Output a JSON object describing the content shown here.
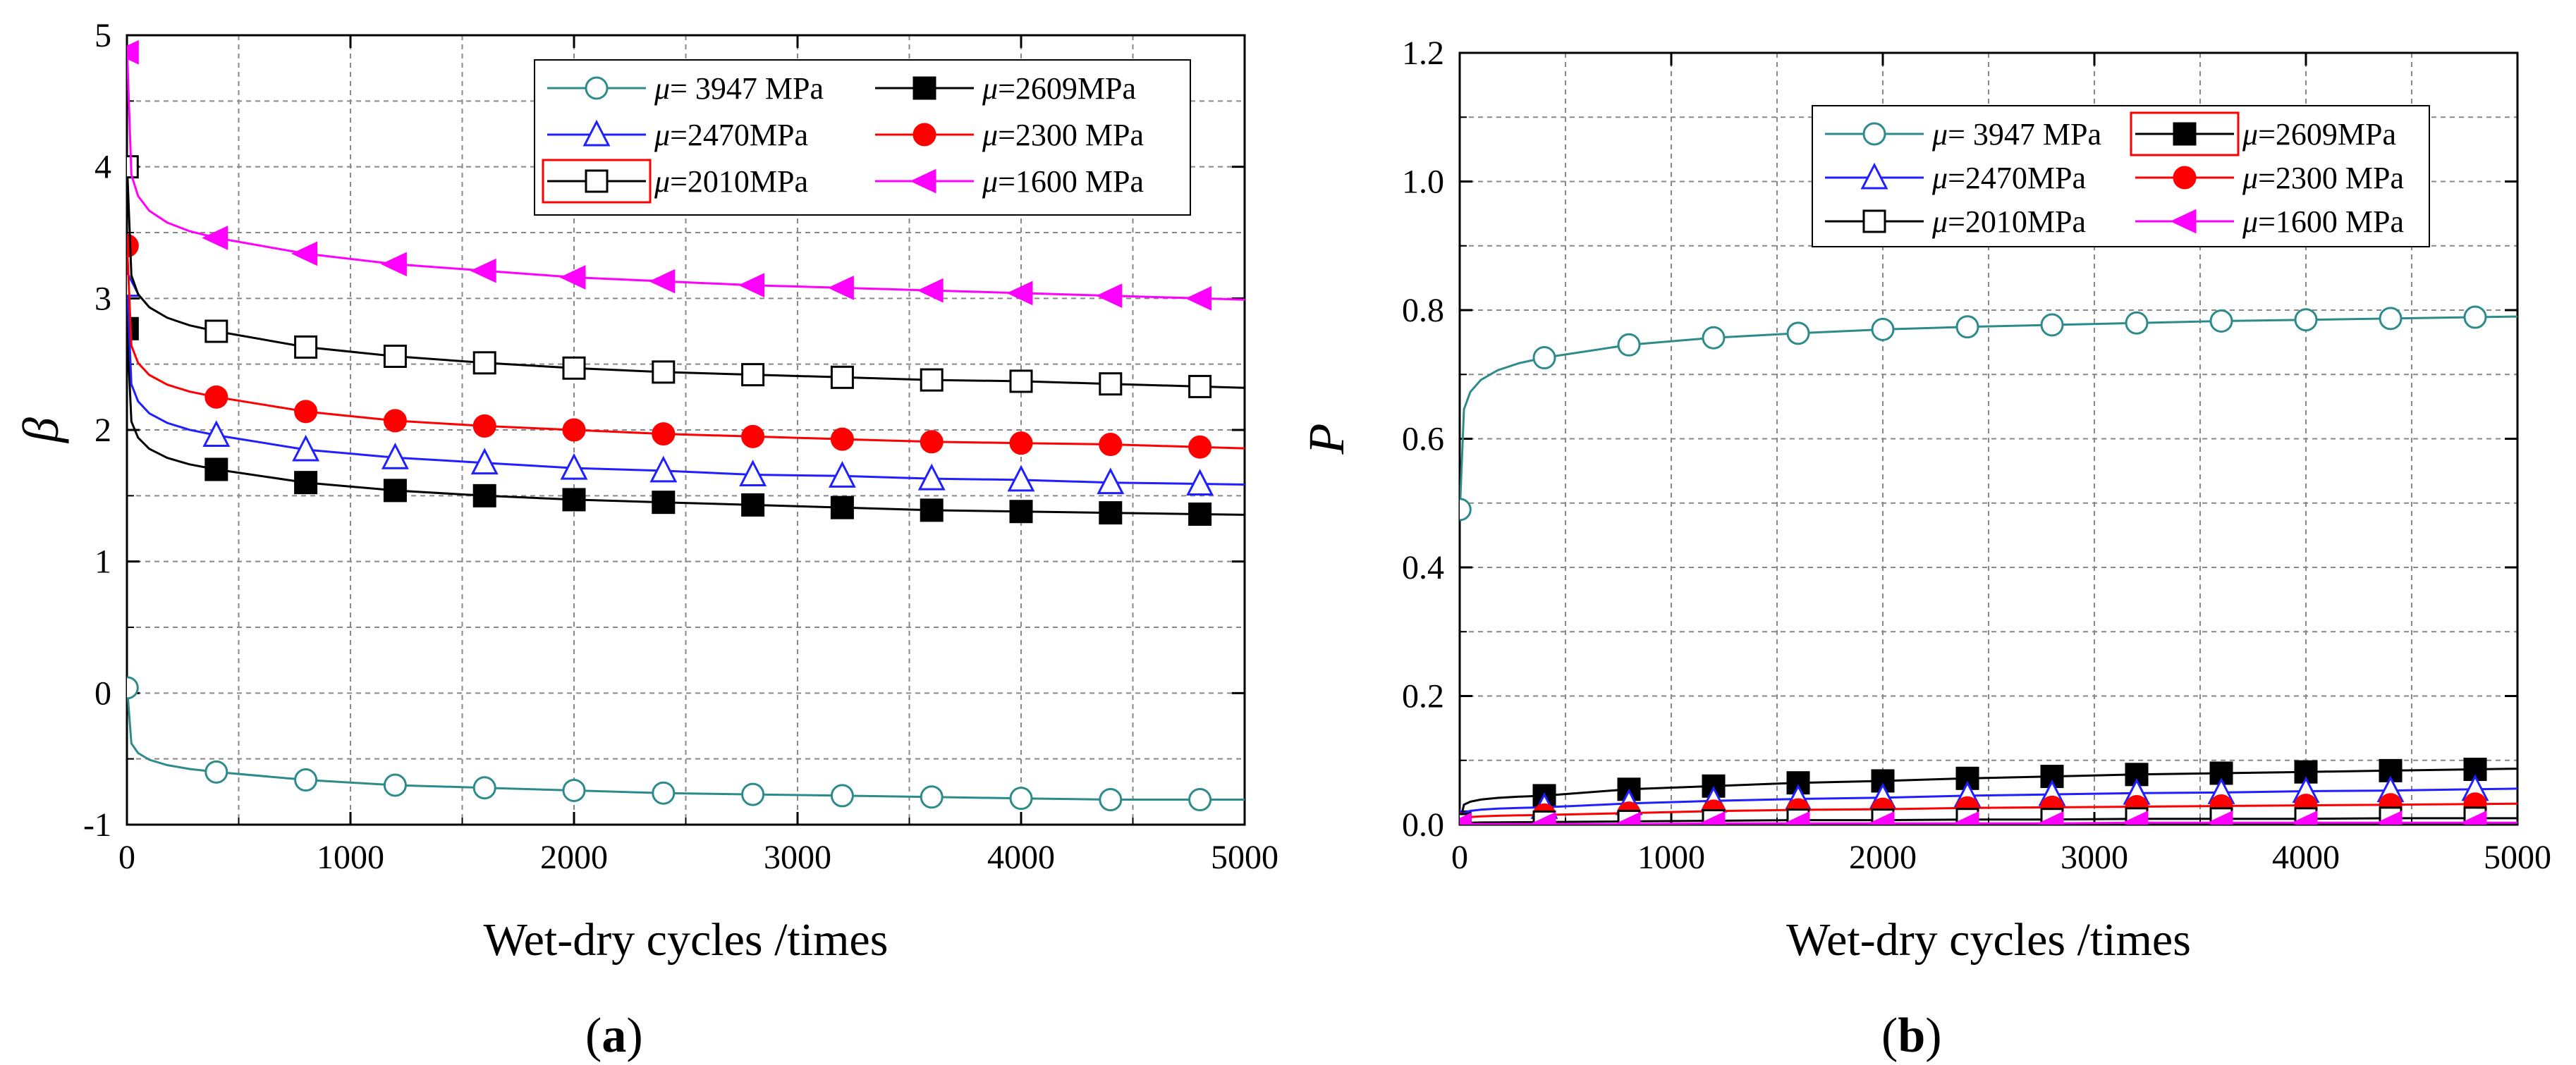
{
  "panels": [
    {
      "open": "(",
      "letter": "a",
      "close": ")"
    },
    {
      "open": "(",
      "letter": "b",
      "close": ")"
    }
  ],
  "colors": {
    "s1": "#2e8b8b",
    "s2": "#000000",
    "s3": "#1f1fff",
    "s4": "#ff0000",
    "s5": "#000000",
    "s6": "#ff00ff",
    "grid": "#888888",
    "legend_highlight": "#ff0000"
  },
  "chart_data": [
    {
      "type": "line",
      "panel": "a",
      "xlabel": "Wet-dry cycles /times",
      "ylabel": "β",
      "xlim": [
        0,
        5000
      ],
      "ylim": [
        -1,
        5
      ],
      "xticks": [
        0,
        1000,
        2000,
        3000,
        4000,
        5000
      ],
      "yticks": [
        -1,
        0,
        1,
        2,
        3,
        4,
        5
      ],
      "grid": true,
      "legend_position": "top-right",
      "legend_columns": 2,
      "x": [
        1,
        400,
        800,
        1200,
        1600,
        2000,
        2400,
        2800,
        3200,
        3600,
        4000,
        4400,
        4800
      ],
      "series": [
        {
          "name": "μ= 3947 MPa",
          "mu": "μ",
          "rest": "= 3947 MPa",
          "color": "#2e8b8b",
          "marker": "circle-open",
          "values": [
            0.04,
            -0.6,
            -0.66,
            -0.7,
            -0.72,
            -0.74,
            -0.76,
            -0.77,
            -0.78,
            -0.79,
            -0.8,
            -0.81,
            -0.81
          ]
        },
        {
          "name": "μ=2609MPa",
          "mu": "μ",
          "rest": "=2609MPa",
          "color": "#000000",
          "marker": "square-filled",
          "values": [
            2.77,
            1.7,
            1.6,
            1.54,
            1.5,
            1.47,
            1.45,
            1.43,
            1.41,
            1.39,
            1.38,
            1.37,
            1.36
          ]
        },
        {
          "name": "μ=2470MPa",
          "mu": "μ",
          "rest": "=2470MPa",
          "color": "#1f1fff",
          "marker": "triangle-open",
          "values": [
            3.1,
            1.96,
            1.85,
            1.79,
            1.75,
            1.71,
            1.69,
            1.66,
            1.65,
            1.63,
            1.62,
            1.6,
            1.59
          ]
        },
        {
          "name": "μ=2300 MPa",
          "mu": "μ",
          "rest": "=2300 MPa",
          "color": "#ff0000",
          "marker": "circle-filled",
          "values": [
            3.4,
            2.25,
            2.14,
            2.07,
            2.03,
            2.0,
            1.97,
            1.95,
            1.93,
            1.91,
            1.9,
            1.89,
            1.87
          ]
        },
        {
          "name": "μ=2010MPa",
          "mu": "μ",
          "rest": "=2010MPa",
          "color": "#000000",
          "marker": "square-open",
          "highlight": true,
          "values": [
            4.0,
            2.75,
            2.63,
            2.56,
            2.51,
            2.47,
            2.44,
            2.42,
            2.4,
            2.38,
            2.37,
            2.35,
            2.33
          ]
        },
        {
          "name": "μ=1600 MPa",
          "mu": "μ",
          "rest": "=1600 MPa",
          "color": "#ff00ff",
          "marker": "triangle-left-filled",
          "values": [
            4.87,
            3.46,
            3.34,
            3.26,
            3.21,
            3.16,
            3.13,
            3.1,
            3.08,
            3.06,
            3.04,
            3.02,
            3.0
          ]
        }
      ]
    },
    {
      "type": "line",
      "panel": "b",
      "xlabel": "Wet-dry cycles /times",
      "ylabel": "P",
      "xlim": [
        0,
        5000
      ],
      "ylim": [
        0.0,
        1.2
      ],
      "xticks": [
        0,
        1000,
        2000,
        3000,
        4000,
        5000
      ],
      "yticks": [
        "0.0",
        "0.2",
        "0.4",
        "0.6",
        "0.8",
        "1.0",
        "1.2"
      ],
      "grid": true,
      "legend_position": "top-right",
      "legend_columns": 2,
      "x": [
        1,
        400,
        800,
        1200,
        1600,
        2000,
        2400,
        2800,
        3200,
        3600,
        4000,
        4400,
        4800
      ],
      "series": [
        {
          "name": "μ= 3947 MPa",
          "mu": "μ",
          "rest": "= 3947 MPa",
          "color": "#2e8b8b",
          "marker": "circle-open",
          "values": [
            0.49,
            0.726,
            0.746,
            0.757,
            0.764,
            0.77,
            0.774,
            0.777,
            0.78,
            0.783,
            0.785,
            0.787,
            0.789
          ]
        },
        {
          "name": "μ=2609MPa",
          "mu": "μ",
          "rest": "=2609MPa",
          "color": "#000000",
          "marker": "square-filled",
          "highlight": true,
          "values": [
            0.004,
            0.045,
            0.055,
            0.06,
            0.065,
            0.068,
            0.072,
            0.075,
            0.078,
            0.08,
            0.082,
            0.084,
            0.086
          ]
        },
        {
          "name": "μ=2470MPa",
          "mu": "μ",
          "rest": "=2470MPa",
          "color": "#1f1fff",
          "marker": "triangle-open",
          "values": [
            0.002,
            0.027,
            0.033,
            0.037,
            0.04,
            0.042,
            0.045,
            0.047,
            0.049,
            0.05,
            0.052,
            0.053,
            0.055
          ]
        },
        {
          "name": "μ=2300 MPa",
          "mu": "μ",
          "rest": "=2300 MPa",
          "color": "#ff0000",
          "marker": "circle-filled",
          "values": [
            0.001,
            0.015,
            0.018,
            0.021,
            0.023,
            0.024,
            0.026,
            0.027,
            0.028,
            0.029,
            0.03,
            0.031,
            0.032
          ]
        },
        {
          "name": "μ=2010MPa",
          "mu": "μ",
          "rest": "=2010MPa",
          "color": "#000000",
          "marker": "square-open",
          "values": [
            0.0,
            0.004,
            0.005,
            0.006,
            0.007,
            0.007,
            0.008,
            0.008,
            0.009,
            0.009,
            0.009,
            0.01,
            0.01
          ]
        },
        {
          "name": "μ=1600 MPa",
          "mu": "μ",
          "rest": "=1600 MPa",
          "color": "#ff00ff",
          "marker": "triangle-left-filled",
          "values": [
            0.0,
            0.001,
            0.001,
            0.002,
            0.002,
            0.002,
            0.002,
            0.002,
            0.003,
            0.003,
            0.003,
            0.003,
            0.003
          ]
        }
      ]
    }
  ]
}
